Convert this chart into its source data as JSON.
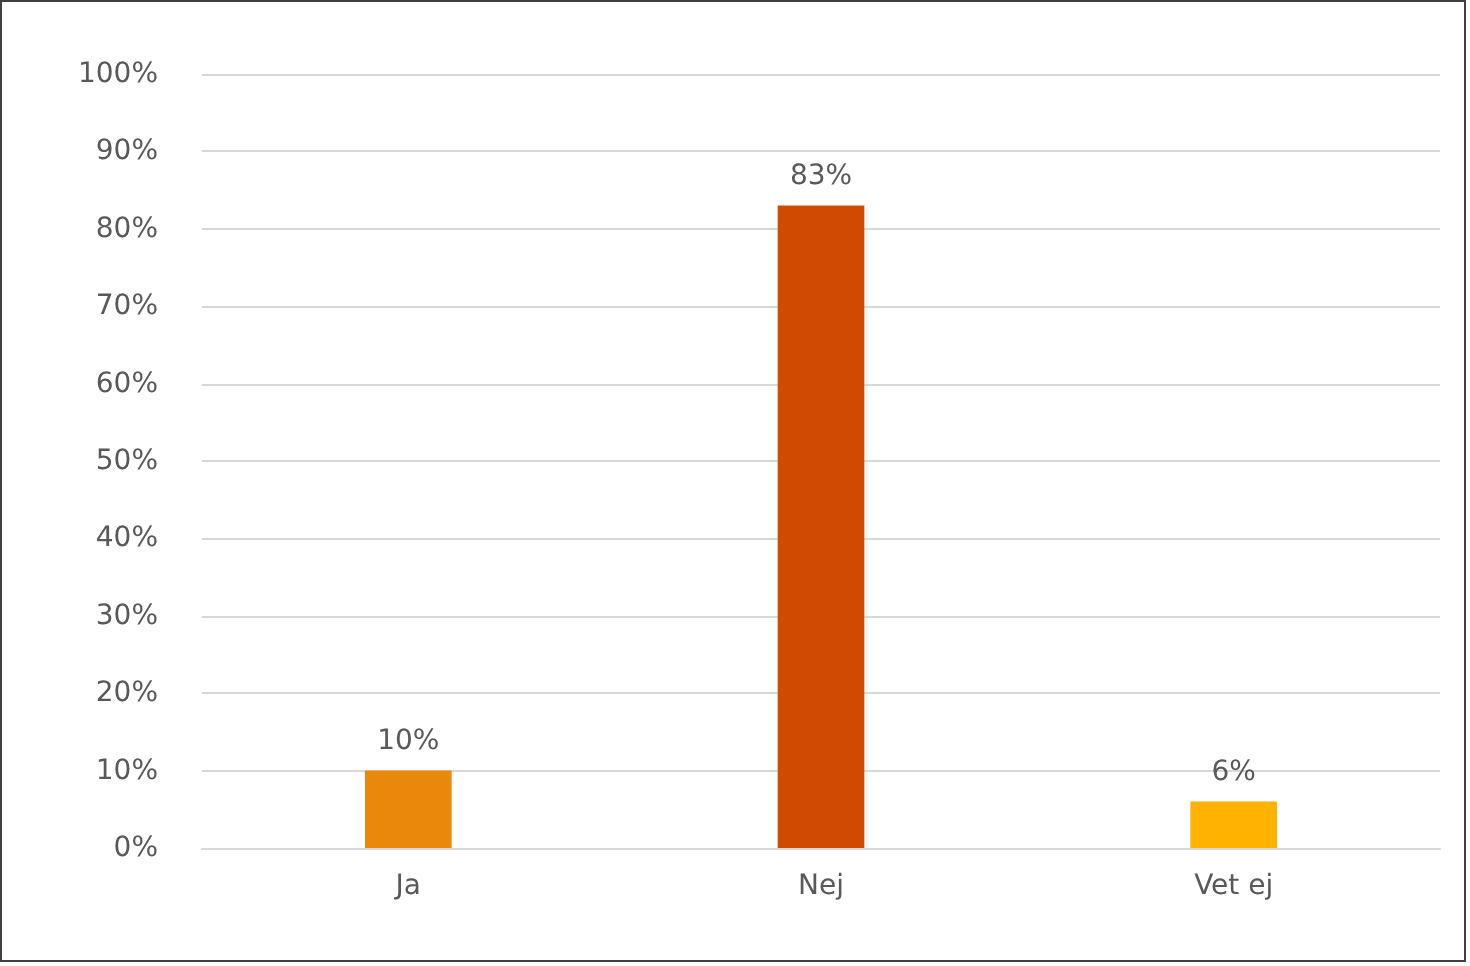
{
  "chart_data": {
    "type": "bar",
    "categories": [
      "Ja",
      "Nej",
      "Vet ej"
    ],
    "values": [
      10,
      83,
      6
    ],
    "colors": [
      "#e8890c",
      "#d04a02",
      "#ffb300"
    ],
    "value_labels": [
      "10%",
      "83%",
      "6%"
    ],
    "ylim": [
      0,
      100
    ],
    "yticks": [
      {
        "value": 0,
        "label": "0%"
      },
      {
        "value": 10,
        "label": "10%"
      },
      {
        "value": 20,
        "label": "20%"
      },
      {
        "value": 30,
        "label": "30%"
      },
      {
        "value": 40,
        "label": "40%"
      },
      {
        "value": 50,
        "label": "50%"
      },
      {
        "value": 60,
        "label": "60%"
      },
      {
        "value": 70,
        "label": "70%"
      },
      {
        "value": 80,
        "label": "80%"
      },
      {
        "value": 90,
        "label": "90%"
      },
      {
        "value": 100,
        "label": "100%"
      }
    ],
    "grid": "y"
  }
}
